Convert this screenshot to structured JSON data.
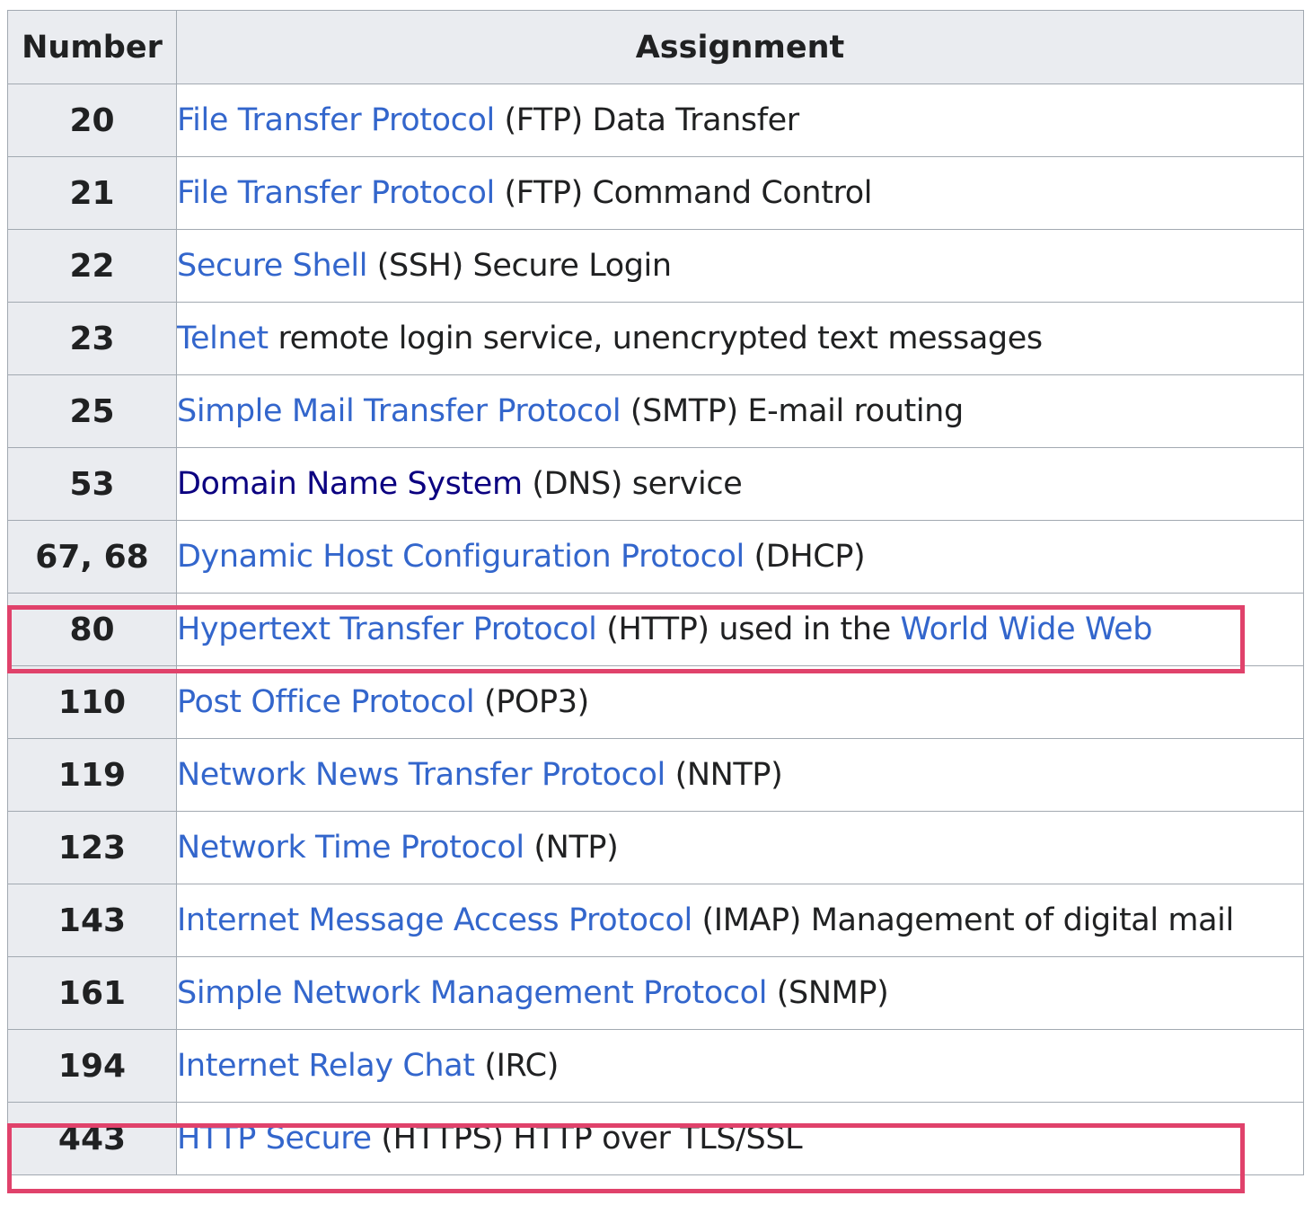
{
  "table": {
    "headers": {
      "number": "Number",
      "assignment": "Assignment"
    },
    "link_color": "#3366cc",
    "visited_link_color": "#0b0080",
    "highlight_color": "#e0426b",
    "rows": [
      {
        "number": "20",
        "link": "File Transfer Protocol",
        "text": " (FTP) Data Transfer"
      },
      {
        "number": "21",
        "link": "File Transfer Protocol",
        "text": " (FTP) Command Control"
      },
      {
        "number": "22",
        "link": "Secure Shell",
        "text": " (SSH) Secure Login"
      },
      {
        "number": "23",
        "link": "Telnet",
        "text": " remote login service, unencrypted text messages"
      },
      {
        "number": "25",
        "link": "Simple Mail Transfer Protocol",
        "text": " (SMTP) E-mail routing"
      },
      {
        "number": "53",
        "link": "Domain Name System",
        "text": " (DNS) service",
        "visited": true
      },
      {
        "number": "67, 68",
        "link": "Dynamic Host Configuration Protocol",
        "text": " (DHCP)"
      },
      {
        "number": "80",
        "link": "Hypertext Transfer Protocol",
        "text": " (HTTP) used in the ",
        "link2": "World Wide Web",
        "highlighted": true
      },
      {
        "number": "110",
        "link": "Post Office Protocol",
        "text": " (POP3)"
      },
      {
        "number": "119",
        "link": "Network News Transfer Protocol",
        "text": " (NNTP)"
      },
      {
        "number": "123",
        "link": "Network Time Protocol",
        "text": " (NTP)"
      },
      {
        "number": "143",
        "link": "Internet Message Access Protocol",
        "text": " (IMAP) Management of digital mail"
      },
      {
        "number": "161",
        "link": "Simple Network Management Protocol",
        "text": " (SNMP)"
      },
      {
        "number": "194",
        "link": "Internet Relay Chat",
        "text": " (IRC)"
      },
      {
        "number": "443",
        "link": "HTTP Secure",
        "text": " (HTTPS) HTTP over TLS/SSL",
        "highlighted": true
      }
    ]
  }
}
